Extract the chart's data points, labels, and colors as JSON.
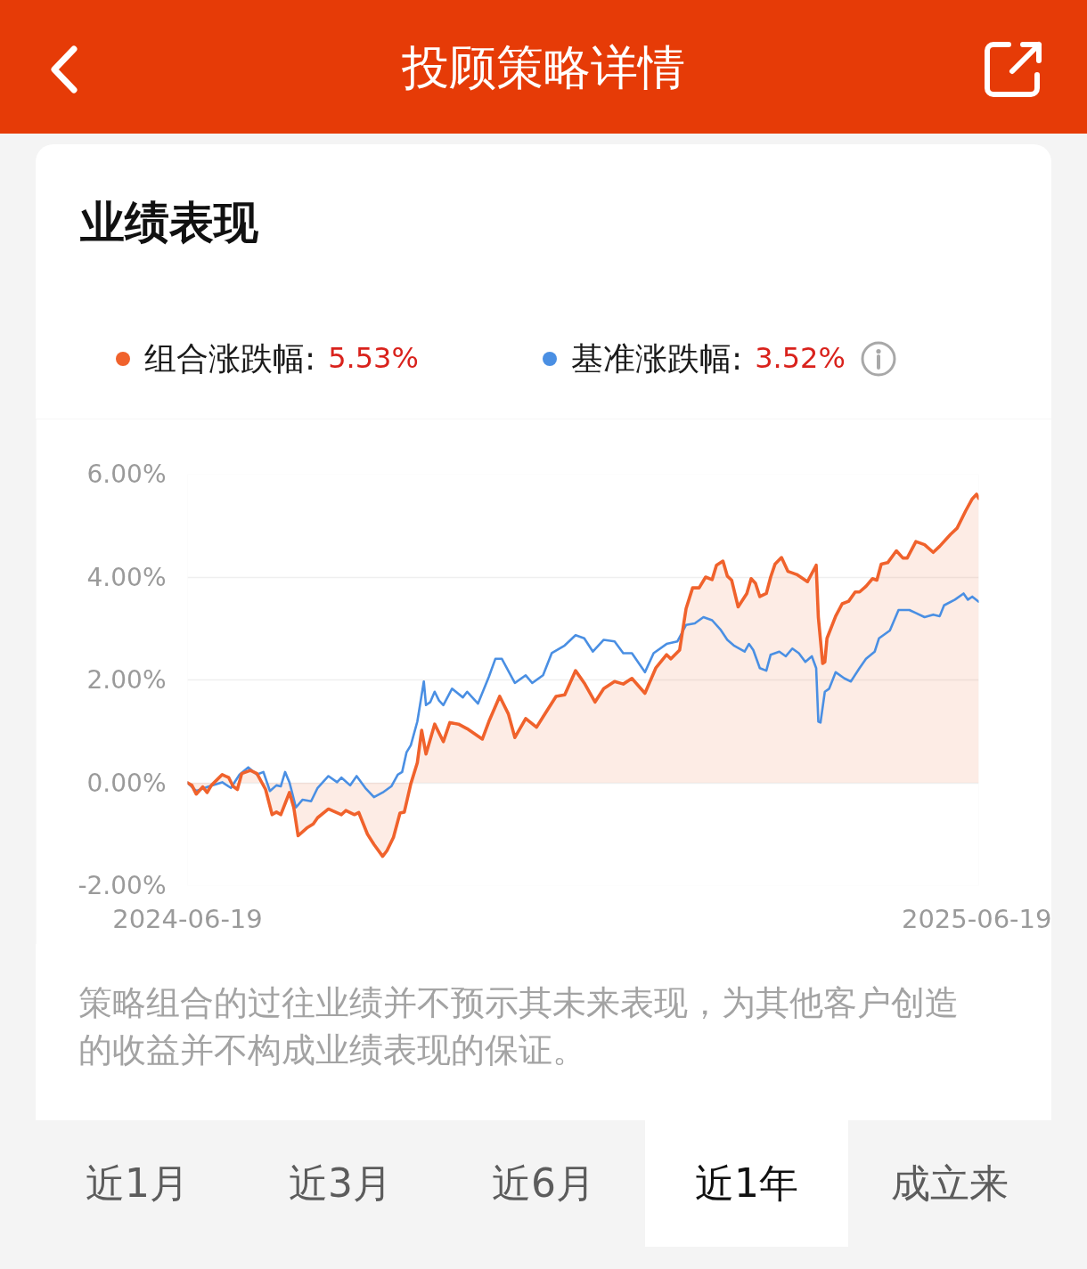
{
  "chart_data": {
    "type": "line",
    "title": "业绩表现",
    "annotations": [
      "投顾策略详情",
      "5.53%",
      "3.52%",
      "策略组合的过往业绩并不预示其未来表现，为其他客户创造的收益并不构成业绩表现的保证。",
      "近1月",
      "近3月",
      "近6月",
      "近1年",
      "成立来"
    ],
    "xlim": [
      "2024-06-19",
      "2025-06-19"
    ],
    "xticks": [
      "2024-06-19",
      "2025-06-19"
    ],
    "ylim": [
      -2,
      6
    ],
    "yticks": [
      {
        "value": -2,
        "label": "-2.00%"
      },
      {
        "value": 0,
        "label": "0.00%"
      },
      {
        "value": 2,
        "label": "2.00%"
      },
      {
        "value": 4,
        "label": "4.00%"
      },
      {
        "value": 6,
        "label": "6.00%"
      }
    ],
    "grid": "y",
    "legend": "top",
    "series": [
      {
        "name": "组合涨跌幅:",
        "type": "area",
        "color": "#f0622c",
        "x": [
          "2024-06-19",
          "2024-06-21",
          "2024-06-23",
          "2024-06-26",
          "2024-06-28",
          "2024-06-30",
          "2024-07-05",
          "2024-07-08",
          "2024-07-10",
          "2024-07-12",
          "2024-07-14",
          "2024-07-18",
          "2024-07-21",
          "2024-07-25",
          "2024-07-28",
          "2024-07-30",
          "2024-08-01",
          "2024-08-05",
          "2024-08-07",
          "2024-08-09",
          "2024-08-13",
          "2024-08-16",
          "2024-08-18",
          "2024-08-23",
          "2024-08-29",
          "2024-08-31",
          "2024-09-04",
          "2024-09-06",
          "2024-09-10",
          "2024-09-13",
          "2024-09-17",
          "2024-09-19",
          "2024-09-22",
          "2024-09-25",
          "2024-09-27",
          "2024-09-30",
          "2024-10-03",
          "2024-10-05",
          "2024-10-07",
          "2024-10-11",
          "2024-10-15",
          "2024-10-18",
          "2024-10-22",
          "2024-10-26",
          "2024-11-02",
          "2024-11-05",
          "2024-11-10",
          "2024-11-14",
          "2024-11-17",
          "2024-11-22",
          "2024-11-27",
          "2024-11-30",
          "2024-12-06",
          "2024-12-10",
          "2024-12-15",
          "2024-12-19",
          "2024-12-24",
          "2024-12-28",
          "2025-01-02",
          "2025-01-06",
          "2025-01-10",
          "2025-01-16",
          "2025-01-21",
          "2025-01-26",
          "2025-01-28",
          "2025-02-01",
          "2025-02-04",
          "2025-02-07",
          "2025-02-10",
          "2025-02-13",
          "2025-02-16",
          "2025-02-18",
          "2025-02-21",
          "2025-02-23",
          "2025-02-25",
          "2025-02-28",
          "2025-03-04",
          "2025-03-06",
          "2025-03-08",
          "2025-03-10",
          "2025-03-13",
          "2025-03-15",
          "2025-03-17",
          "2025-03-20",
          "2025-03-23",
          "2025-03-27",
          "2025-04-01",
          "2025-04-05",
          "2025-04-06",
          "2025-04-08",
          "2025-04-09",
          "2025-04-10",
          "2025-04-14",
          "2025-04-17",
          "2025-04-20",
          "2025-04-23",
          "2025-04-25",
          "2025-04-28",
          "2025-05-01",
          "2025-05-03",
          "2025-05-05",
          "2025-05-08",
          "2025-05-12",
          "2025-05-15",
          "2025-05-17",
          "2025-05-21",
          "2025-05-25",
          "2025-05-29",
          "2025-06-01",
          "2025-06-06",
          "2025-06-09",
          "2025-06-13",
          "2025-06-16",
          "2025-06-18",
          "2025-06-19"
        ],
        "values": [
          0.0,
          -0.05,
          -0.22,
          -0.08,
          -0.19,
          -0.05,
          0.16,
          0.1,
          -0.07,
          -0.13,
          0.18,
          0.24,
          0.18,
          -0.13,
          -0.62,
          -0.57,
          -0.62,
          -0.19,
          -0.48,
          -1.03,
          -0.88,
          -0.8,
          -0.68,
          -0.51,
          -0.62,
          -0.54,
          -0.62,
          -0.58,
          -1.0,
          -1.2,
          -1.43,
          -1.32,
          -1.06,
          -0.59,
          -0.57,
          -0.02,
          0.39,
          1.02,
          0.56,
          1.14,
          0.8,
          1.17,
          1.14,
          1.05,
          0.85,
          1.19,
          1.68,
          1.34,
          0.88,
          1.25,
          1.08,
          1.28,
          1.68,
          1.71,
          2.18,
          1.94,
          1.57,
          1.83,
          1.97,
          1.92,
          2.03,
          1.74,
          2.23,
          2.49,
          2.41,
          2.58,
          3.39,
          3.79,
          3.79,
          4.0,
          3.95,
          4.23,
          4.31,
          4.02,
          3.94,
          3.42,
          3.68,
          3.97,
          3.88,
          3.62,
          3.68,
          4.0,
          4.25,
          4.38,
          4.11,
          4.05,
          3.91,
          4.23,
          3.22,
          2.32,
          2.35,
          2.81,
          3.24,
          3.48,
          3.53,
          3.71,
          3.71,
          3.82,
          3.97,
          3.94,
          4.25,
          4.28,
          4.51,
          4.37,
          4.37,
          4.69,
          4.63,
          4.48,
          4.6,
          4.83,
          4.95,
          5.29,
          5.52,
          5.61,
          5.53
        ]
      },
      {
        "name": "基准涨跌幅:",
        "color": "#4a8fe3",
        "x": [
          "2024-06-19",
          "2024-06-23",
          "2024-06-29",
          "2024-07-05",
          "2024-07-09",
          "2024-07-13",
          "2024-07-17",
          "2024-07-21",
          "2024-07-24",
          "2024-07-27",
          "2024-07-30",
          "2024-08-01",
          "2024-08-03",
          "2024-08-05",
          "2024-08-08",
          "2024-08-11",
          "2024-08-15",
          "2024-08-18",
          "2024-08-23",
          "2024-08-27",
          "2024-08-29",
          "2024-09-02",
          "2024-09-05",
          "2024-09-09",
          "2024-09-13",
          "2024-09-17",
          "2024-09-21",
          "2024-09-24",
          "2024-09-26",
          "2024-09-28",
          "2024-09-30",
          "2024-10-03",
          "2024-10-06",
          "2024-10-07",
          "2024-10-09",
          "2024-10-11",
          "2024-10-13",
          "2024-10-15",
          "2024-10-19",
          "2024-10-24",
          "2024-10-26",
          "2024-10-31",
          "2024-11-05",
          "2024-11-08",
          "2024-11-11",
          "2024-11-17",
          "2024-11-22",
          "2024-11-25",
          "2024-11-30",
          "2024-12-04",
          "2024-12-10",
          "2024-12-15",
          "2024-12-19",
          "2024-12-23",
          "2024-12-28",
          "2025-01-02",
          "2025-01-06",
          "2025-01-10",
          "2025-01-16",
          "2025-01-20",
          "2025-01-26",
          "2025-01-31",
          "2025-02-04",
          "2025-02-08",
          "2025-02-12",
          "2025-02-16",
          "2025-02-20",
          "2025-02-23",
          "2025-02-26",
          "2025-03-03",
          "2025-03-05",
          "2025-03-07",
          "2025-03-10",
          "2025-03-13",
          "2025-03-15",
          "2025-03-19",
          "2025-03-22",
          "2025-03-25",
          "2025-03-28",
          "2025-03-31",
          "2025-04-03",
          "2025-04-05",
          "2025-04-06",
          "2025-04-07",
          "2025-04-09",
          "2025-04-11",
          "2025-04-14",
          "2025-04-18",
          "2025-04-21",
          "2025-04-25",
          "2025-04-28",
          "2025-05-02",
          "2025-05-04",
          "2025-05-09",
          "2025-05-13",
          "2025-05-18",
          "2025-05-21",
          "2025-05-25",
          "2025-05-29",
          "2025-06-01",
          "2025-06-03",
          "2025-06-08",
          "2025-06-12",
          "2025-06-14",
          "2025-06-16",
          "2025-06-19"
        ],
        "values": [
          0.0,
          -0.16,
          -0.07,
          0.01,
          -0.1,
          0.16,
          0.3,
          0.16,
          0.21,
          -0.16,
          -0.05,
          -0.07,
          0.21,
          0.01,
          -0.48,
          -0.33,
          -0.36,
          -0.1,
          0.13,
          0.01,
          0.1,
          -0.05,
          0.13,
          -0.1,
          -0.28,
          -0.19,
          -0.07,
          0.16,
          0.21,
          0.59,
          0.73,
          1.19,
          1.97,
          1.51,
          1.57,
          1.77,
          1.6,
          1.51,
          1.83,
          1.66,
          1.77,
          1.54,
          2.06,
          2.41,
          2.41,
          1.94,
          2.09,
          1.94,
          2.09,
          2.52,
          2.67,
          2.87,
          2.81,
          2.55,
          2.78,
          2.75,
          2.52,
          2.52,
          2.15,
          2.52,
          2.7,
          2.75,
          3.07,
          3.1,
          3.22,
          3.16,
          2.97,
          2.78,
          2.67,
          2.55,
          2.7,
          2.58,
          2.23,
          2.18,
          2.49,
          2.55,
          2.46,
          2.61,
          2.52,
          2.35,
          2.46,
          2.23,
          1.19,
          1.17,
          1.77,
          1.83,
          2.15,
          2.03,
          1.97,
          2.23,
          2.41,
          2.55,
          2.81,
          2.96,
          3.36,
          3.36,
          3.3,
          3.22,
          3.27,
          3.24,
          3.45,
          3.56,
          3.68,
          3.56,
          3.62,
          3.52
        ]
      }
    ]
  }
}
